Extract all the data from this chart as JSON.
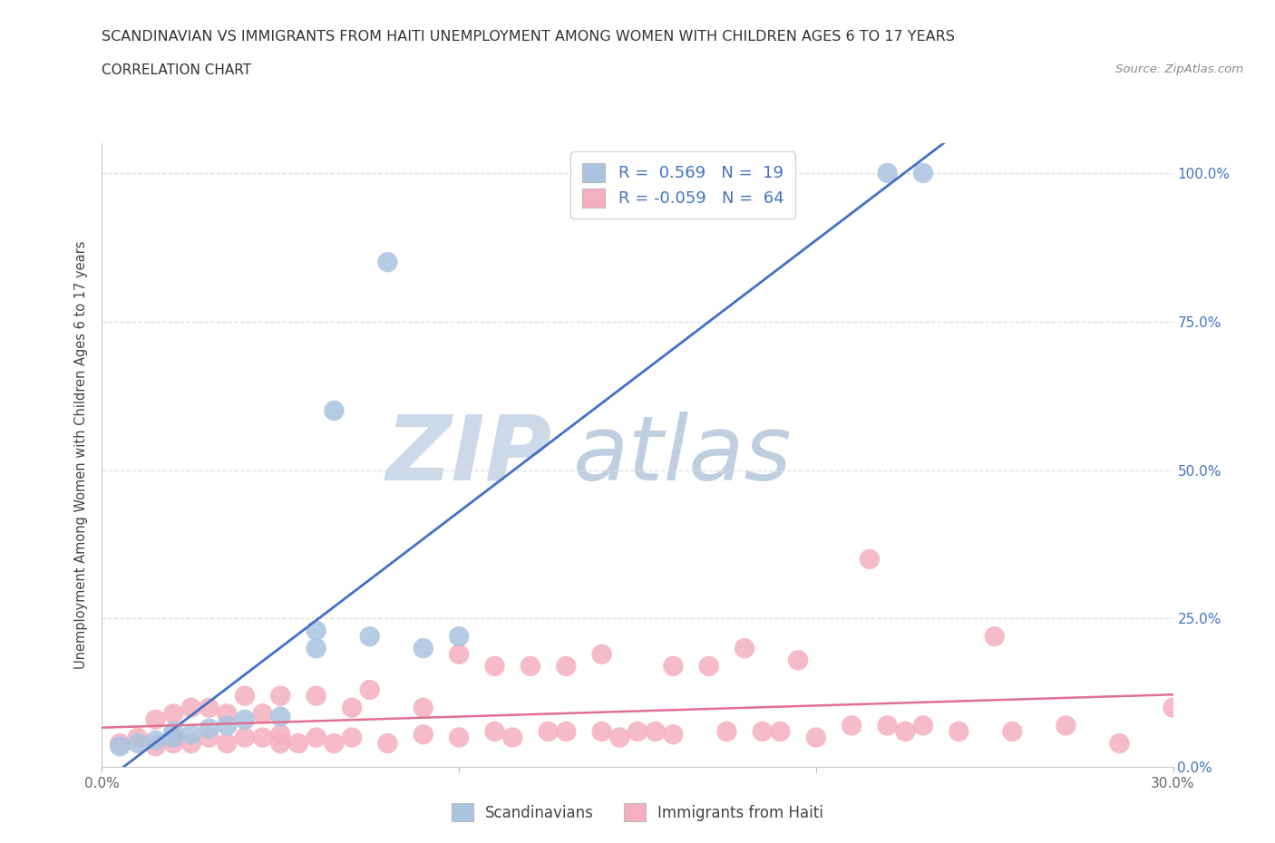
{
  "title": "SCANDINAVIAN VS IMMIGRANTS FROM HAITI UNEMPLOYMENT AMONG WOMEN WITH CHILDREN AGES 6 TO 17 YEARS",
  "subtitle": "CORRELATION CHART",
  "source": "Source: ZipAtlas.com",
  "ylabel": "Unemployment Among Women with Children Ages 6 to 17 years",
  "xlim": [
    0.0,
    0.3
  ],
  "ylim": [
    0.0,
    1.05
  ],
  "R_scand": 0.569,
  "N_scand": 19,
  "R_haiti": -0.059,
  "N_haiti": 64,
  "scand_color": "#aac4e0",
  "haiti_color": "#f5afc0",
  "scand_line_color": "#4472c4",
  "haiti_line_color": "#e07090",
  "watermark_zip_color": "#cdd9e8",
  "watermark_atlas_color": "#c0cfe0",
  "grid_color": "#d8dfe8",
  "scand_x": [
    0.005,
    0.01,
    0.015,
    0.02,
    0.02,
    0.025,
    0.03,
    0.035,
    0.04,
    0.05,
    0.06,
    0.06,
    0.065,
    0.075,
    0.08,
    0.09,
    0.1,
    0.22,
    0.23
  ],
  "scand_y": [
    0.035,
    0.04,
    0.045,
    0.05,
    0.06,
    0.055,
    0.065,
    0.07,
    0.08,
    0.085,
    0.2,
    0.23,
    0.6,
    0.22,
    0.85,
    0.2,
    0.22,
    1.0,
    1.0
  ],
  "haiti_x": [
    0.005,
    0.01,
    0.015,
    0.015,
    0.02,
    0.02,
    0.02,
    0.025,
    0.025,
    0.03,
    0.03,
    0.035,
    0.035,
    0.04,
    0.04,
    0.045,
    0.045,
    0.05,
    0.05,
    0.05,
    0.055,
    0.06,
    0.06,
    0.065,
    0.07,
    0.07,
    0.075,
    0.08,
    0.09,
    0.09,
    0.1,
    0.1,
    0.11,
    0.11,
    0.115,
    0.12,
    0.125,
    0.13,
    0.13,
    0.14,
    0.14,
    0.145,
    0.15,
    0.155,
    0.16,
    0.16,
    0.17,
    0.175,
    0.18,
    0.185,
    0.19,
    0.195,
    0.2,
    0.21,
    0.215,
    0.22,
    0.225,
    0.23,
    0.24,
    0.25,
    0.255,
    0.27,
    0.285,
    0.3
  ],
  "haiti_y": [
    0.04,
    0.05,
    0.035,
    0.08,
    0.04,
    0.05,
    0.09,
    0.04,
    0.1,
    0.05,
    0.1,
    0.04,
    0.09,
    0.05,
    0.12,
    0.05,
    0.09,
    0.04,
    0.055,
    0.12,
    0.04,
    0.05,
    0.12,
    0.04,
    0.05,
    0.1,
    0.13,
    0.04,
    0.055,
    0.1,
    0.05,
    0.19,
    0.06,
    0.17,
    0.05,
    0.17,
    0.06,
    0.06,
    0.17,
    0.06,
    0.19,
    0.05,
    0.06,
    0.06,
    0.055,
    0.17,
    0.17,
    0.06,
    0.2,
    0.06,
    0.06,
    0.18,
    0.05,
    0.07,
    0.35,
    0.07,
    0.06,
    0.07,
    0.06,
    0.22,
    0.06,
    0.07,
    0.04,
    0.1
  ]
}
